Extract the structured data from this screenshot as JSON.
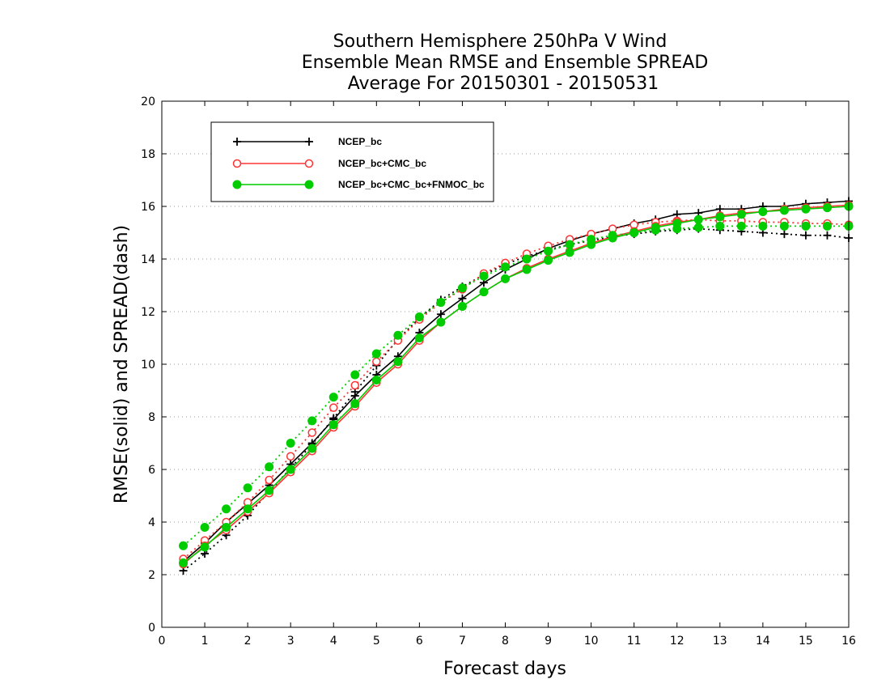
{
  "chart_data": {
    "type": "line",
    "title": [
      "Southern Hemisphere 250hPa V Wind",
      "Ensemble Mean RMSE and Ensemble SPREAD",
      "Average For 20150301 - 20150531"
    ],
    "xlabel": "Forecast days",
    "ylabel": "RMSE(solid) and SPREAD(dash)",
    "xlim": [
      0,
      16
    ],
    "ylim": [
      0,
      20
    ],
    "xticks": [
      "0",
      "1",
      "2",
      "3",
      "4",
      "5",
      "6",
      "7",
      "8",
      "9",
      "10",
      "11",
      "12",
      "13",
      "14",
      "15",
      "16"
    ],
    "yticks": [
      "0",
      "2",
      "4",
      "6",
      "8",
      "10",
      "12",
      "14",
      "16",
      "18",
      "20"
    ],
    "grid": "horizontal dotted",
    "legend_position": "top-left",
    "x": [
      0.5,
      1,
      1.5,
      2,
      2.5,
      3,
      3.5,
      4,
      4.5,
      5,
      5.5,
      6,
      6.5,
      7,
      7.5,
      8,
      8.5,
      9,
      9.5,
      10,
      10.5,
      11,
      11.5,
      12,
      12.5,
      13,
      13.5,
      14,
      14.5,
      15,
      15.5,
      16
    ],
    "series": [
      {
        "name": "NCEP_bc",
        "color": "#000000",
        "marker": "plus",
        "rmse": [
          2.5,
          3.2,
          4.0,
          4.7,
          5.4,
          6.2,
          7.0,
          7.9,
          8.8,
          9.6,
          10.3,
          11.2,
          11.9,
          12.5,
          13.1,
          13.6,
          14.0,
          14.4,
          14.7,
          14.95,
          15.15,
          15.35,
          15.5,
          15.7,
          15.75,
          15.9,
          15.9,
          16.0,
          16.0,
          16.1,
          16.15,
          16.2
        ],
        "spread": [
          2.15,
          2.8,
          3.5,
          4.25,
          5.15,
          6.05,
          6.95,
          7.95,
          8.95,
          9.95,
          10.95,
          11.75,
          12.45,
          12.95,
          13.4,
          13.8,
          14.1,
          14.35,
          14.55,
          14.7,
          14.85,
          14.95,
          15.05,
          15.1,
          15.15,
          15.1,
          15.05,
          15.0,
          14.95,
          14.9,
          14.9,
          14.8
        ]
      },
      {
        "name": "NCEP_bc+CMC_bc",
        "color": "#ff3333",
        "marker": "open-circle",
        "rmse": [
          2.4,
          3.1,
          3.7,
          4.4,
          5.1,
          5.9,
          6.7,
          7.6,
          8.4,
          9.3,
          10.0,
          10.9,
          11.6,
          12.2,
          12.75,
          13.25,
          13.65,
          14.0,
          14.3,
          14.6,
          14.85,
          15.05,
          15.25,
          15.4,
          15.5,
          15.65,
          15.75,
          15.8,
          15.9,
          15.95,
          16.0,
          16.05
        ],
        "spread": [
          2.6,
          3.3,
          4.0,
          4.75,
          5.6,
          6.5,
          7.4,
          8.35,
          9.2,
          10.1,
          10.9,
          11.7,
          12.35,
          12.85,
          13.45,
          13.85,
          14.2,
          14.5,
          14.75,
          14.95,
          15.15,
          15.3,
          15.4,
          15.45,
          15.5,
          15.45,
          15.45,
          15.4,
          15.4,
          15.35,
          15.35,
          15.3
        ]
      },
      {
        "name": "NCEP_bc+CMC_bc+FNMOC_bc",
        "color": "#00cc00",
        "marker": "filled-circle",
        "rmse": [
          2.45,
          3.05,
          3.8,
          4.5,
          5.2,
          6.0,
          6.8,
          7.7,
          8.5,
          9.4,
          10.1,
          11.0,
          11.6,
          12.2,
          12.75,
          13.25,
          13.6,
          13.95,
          14.25,
          14.55,
          14.8,
          15.0,
          15.2,
          15.35,
          15.5,
          15.6,
          15.7,
          15.8,
          15.85,
          15.9,
          15.95,
          16.0
        ],
        "spread": [
          3.1,
          3.8,
          4.5,
          5.3,
          6.1,
          7.0,
          7.85,
          8.75,
          9.6,
          10.4,
          11.1,
          11.8,
          12.35,
          12.9,
          13.35,
          13.7,
          14.0,
          14.3,
          14.55,
          14.75,
          14.9,
          15.0,
          15.1,
          15.15,
          15.2,
          15.25,
          15.25,
          15.25,
          15.25,
          15.25,
          15.25,
          15.25
        ]
      }
    ]
  }
}
